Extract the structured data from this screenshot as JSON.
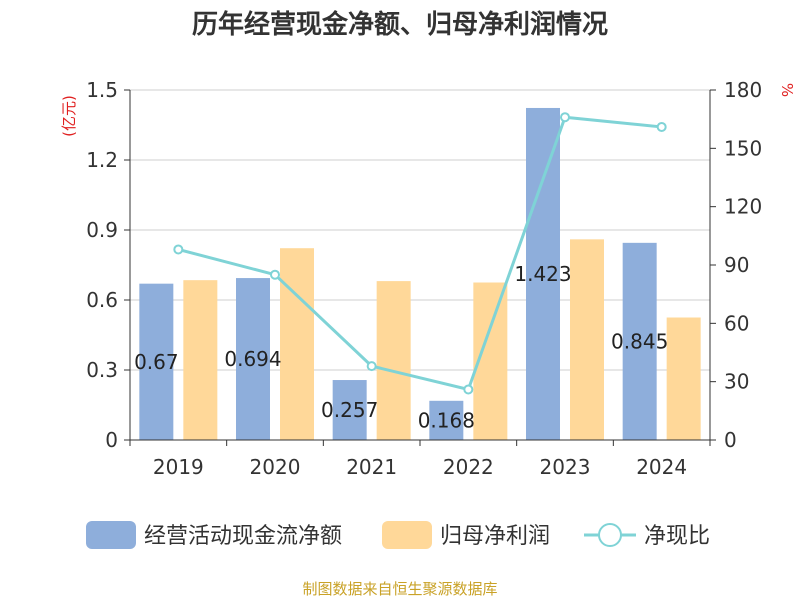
{
  "chart_data": {
    "type": "bar",
    "title": "历年经营现金净额、归母净利润情况",
    "categories": [
      "2019",
      "2020",
      "2021",
      "2022",
      "2023",
      "2024"
    ],
    "left_axis": {
      "label": "(亿元)",
      "ylim": [
        0,
        1.5
      ],
      "ticks": [
        "0",
        "0.3",
        "0.6",
        "0.9",
        "1.2",
        "1.5"
      ],
      "tick_values": [
        0,
        0.3,
        0.6,
        0.9,
        1.2,
        1.5
      ]
    },
    "right_axis": {
      "label": "%",
      "ylim": [
        0,
        180
      ],
      "ticks": [
        "0",
        "30",
        "60",
        "90",
        "120",
        "150",
        "180"
      ],
      "tick_values": [
        0,
        30,
        60,
        90,
        120,
        150,
        180
      ]
    },
    "series": [
      {
        "name": "经营活动现金流净额",
        "type": "bar",
        "axis": "left",
        "color": "#8eaedb",
        "values": [
          0.67,
          0.694,
          0.257,
          0.168,
          1.423,
          0.845
        ],
        "labels": [
          "0.67",
          "0.694",
          "0.257",
          "0.168",
          "1.423",
          "0.845"
        ]
      },
      {
        "name": "归母净利润",
        "type": "bar",
        "axis": "left",
        "color": "#ffd899",
        "values": [
          0.685,
          0.822,
          0.681,
          0.675,
          0.86,
          0.525
        ]
      },
      {
        "name": "净现比",
        "type": "line",
        "axis": "right",
        "color": "#7fd3d6",
        "values": [
          98,
          85,
          38,
          26,
          166,
          161
        ]
      }
    ],
    "grid": true,
    "legend_position": "bottom"
  },
  "source_note": "制图数据来自恒生聚源数据库"
}
